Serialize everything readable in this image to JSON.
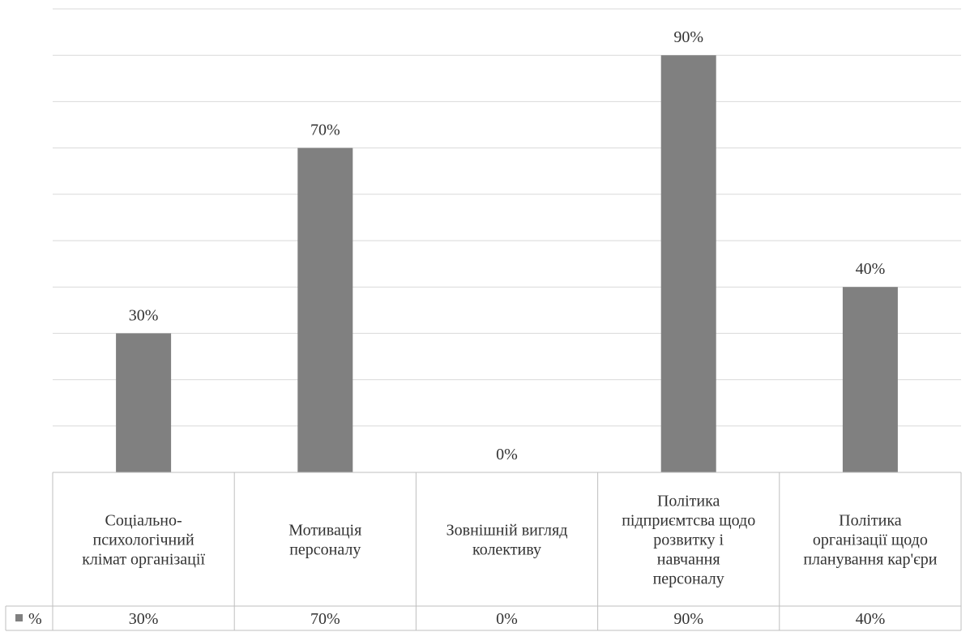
{
  "chart_data": {
    "type": "bar",
    "categories": [
      [
        "Соціально-",
        "психологічний",
        "клімат організації"
      ],
      [
        "Мотивація",
        "персоналу"
      ],
      [
        "Зовнішній вигляд",
        "колективу"
      ],
      [
        "Політика",
        "підприємтсва щодо",
        "розвитку і",
        "навчання",
        "персоналу"
      ],
      [
        "Політика",
        "організації щодо",
        "планування кар'єри"
      ]
    ],
    "series": [
      {
        "name": "%",
        "values": [
          30,
          70,
          0,
          90,
          40
        ],
        "labels": [
          "30%",
          "70%",
          "0%",
          "90%",
          "40%"
        ]
      }
    ],
    "ylim": [
      0,
      100
    ],
    "grid": true,
    "legend": "data-table-left",
    "colors": {
      "bar": "#808080",
      "grid": "#d9d9d9",
      "table": "#bfbfbf",
      "text": "#333333"
    }
  }
}
